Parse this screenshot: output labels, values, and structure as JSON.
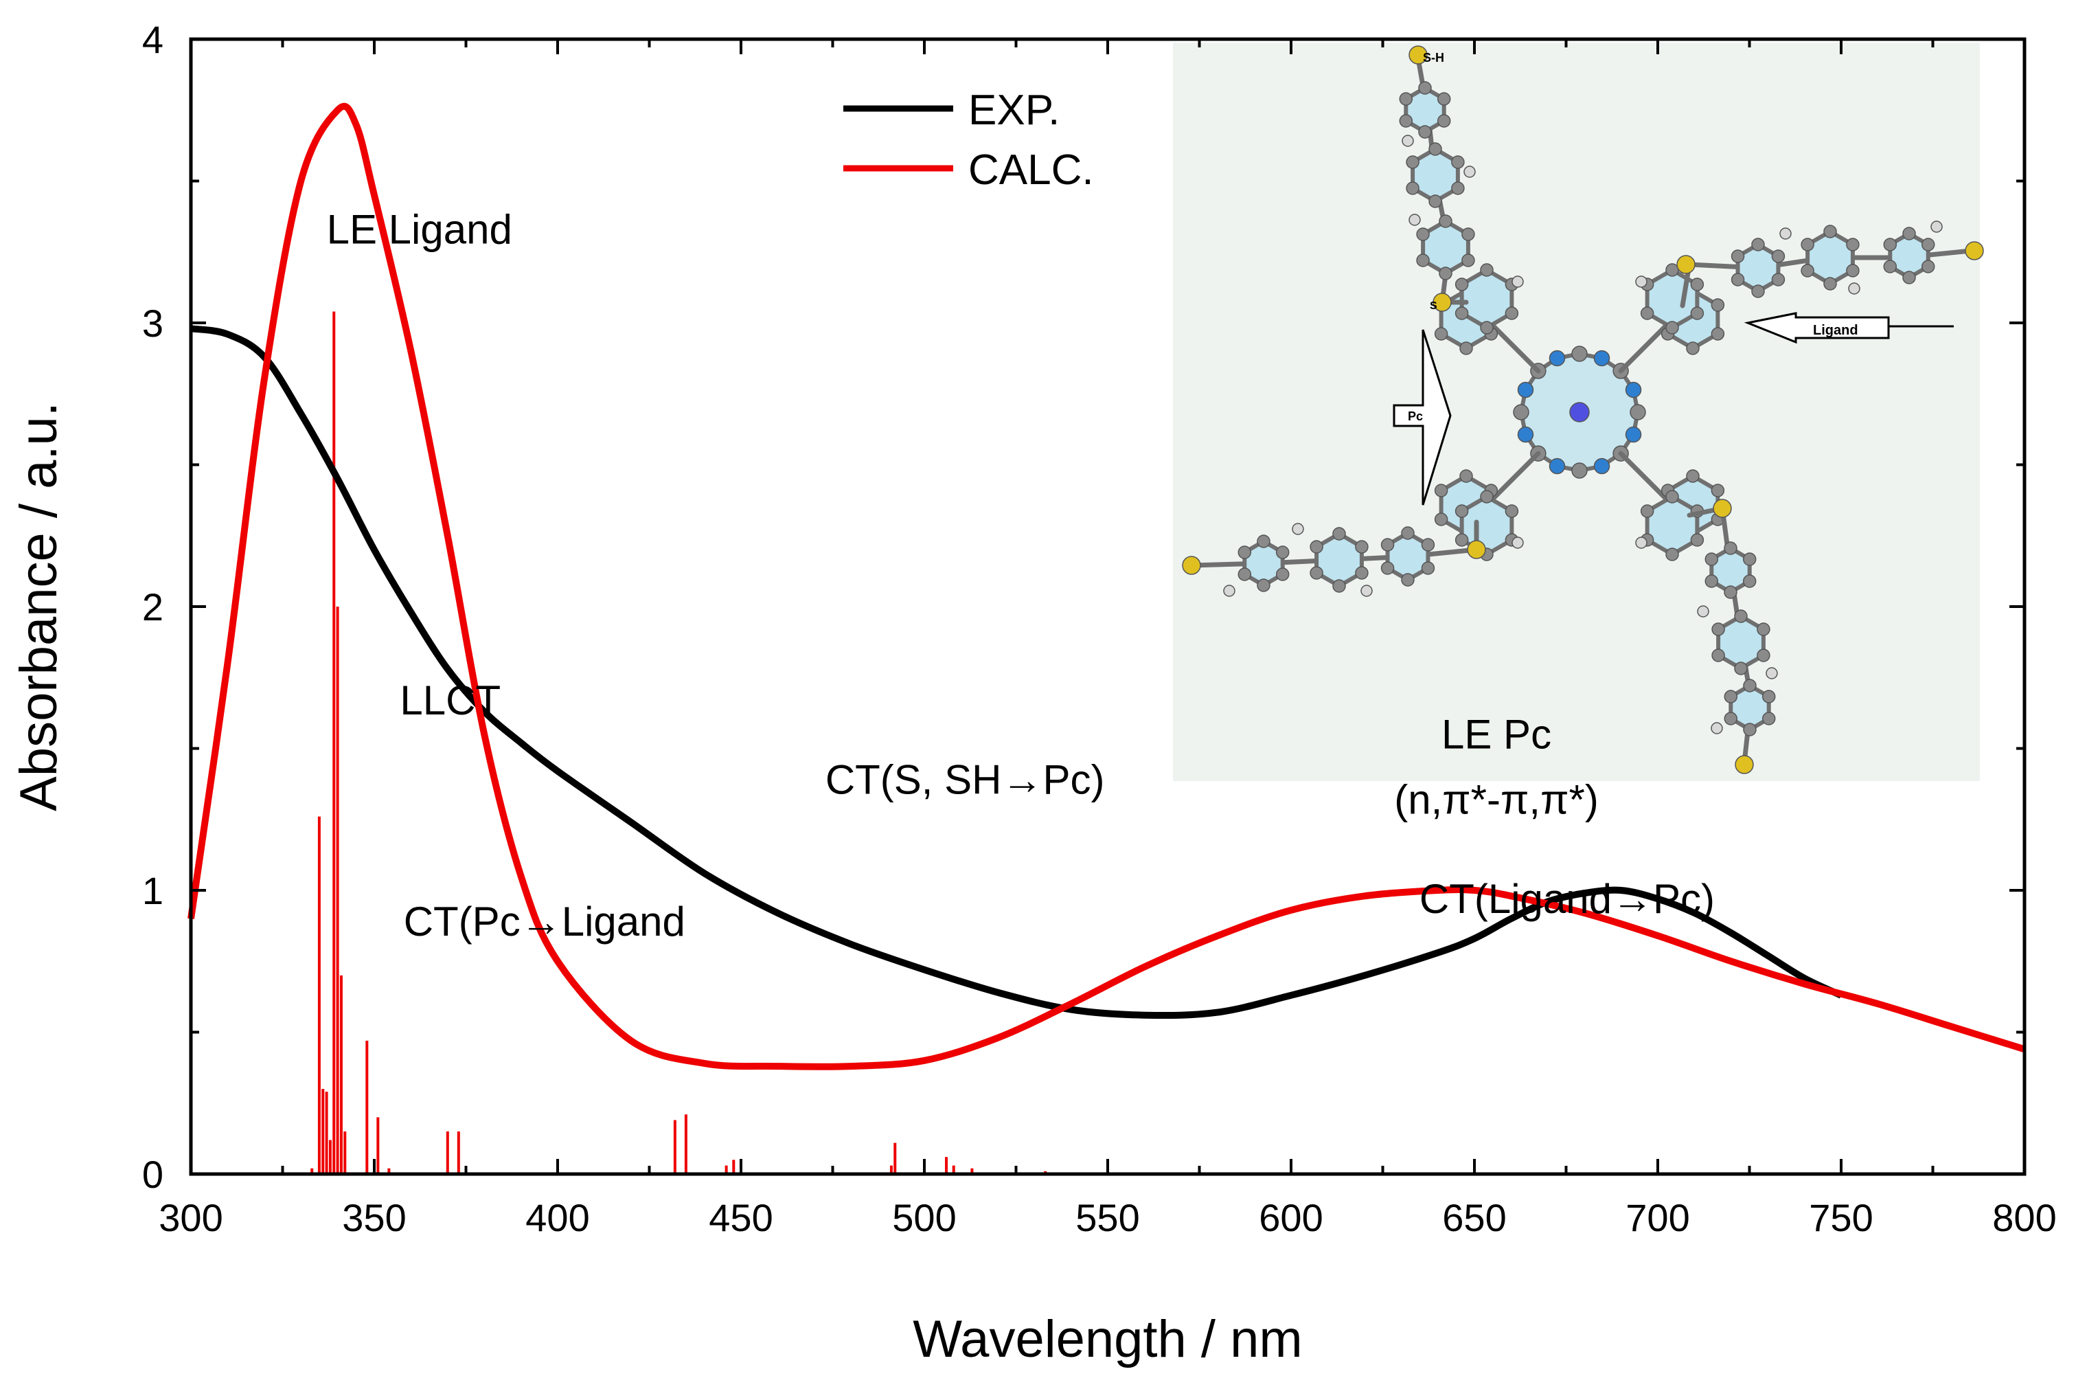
{
  "chart_data": {
    "type": "line",
    "xlabel": "Wavelength / nm",
    "ylabel": "Absorbance / a.u.",
    "xlim": [
      300,
      800
    ],
    "ylim": [
      0,
      4
    ],
    "xticks": [
      "300",
      "350",
      "400",
      "450",
      "500",
      "550",
      "600",
      "650",
      "700",
      "750",
      "800"
    ],
    "yticks": [
      "0",
      "1",
      "2",
      "3",
      "4"
    ],
    "legend_position": "top-center",
    "series": [
      {
        "name": "EXP.",
        "color": "#000000",
        "x": [
          300,
          310,
          320,
          330,
          340,
          350,
          360,
          370,
          380,
          390,
          400,
          420,
          440,
          460,
          480,
          500,
          520,
          540,
          560,
          580,
          600,
          620,
          640,
          650,
          660,
          670,
          680,
          690,
          700,
          710,
          720,
          730,
          740,
          750
        ],
        "y": [
          2.98,
          2.96,
          2.88,
          2.68,
          2.45,
          2.2,
          1.98,
          1.78,
          1.63,
          1.52,
          1.42,
          1.24,
          1.06,
          0.92,
          0.81,
          0.72,
          0.64,
          0.58,
          0.56,
          0.57,
          0.63,
          0.7,
          0.78,
          0.83,
          0.9,
          0.96,
          0.99,
          1.0,
          0.97,
          0.92,
          0.85,
          0.77,
          0.69,
          0.63
        ]
      },
      {
        "name": "CALC.",
        "color": "#ee0000",
        "x": [
          300,
          310,
          320,
          330,
          340,
          345,
          350,
          360,
          370,
          380,
          390,
          400,
          420,
          440,
          460,
          480,
          500,
          520,
          540,
          560,
          580,
          600,
          620,
          640,
          650,
          660,
          680,
          700,
          720,
          740,
          760,
          780,
          800
        ],
        "y": [
          0.9,
          1.8,
          2.8,
          3.5,
          3.75,
          3.7,
          3.45,
          2.9,
          2.25,
          1.55,
          1.05,
          0.75,
          0.47,
          0.39,
          0.38,
          0.38,
          0.4,
          0.48,
          0.6,
          0.73,
          0.84,
          0.93,
          0.98,
          1.0,
          1.0,
          0.98,
          0.92,
          0.84,
          0.75,
          0.67,
          0.6,
          0.52,
          0.44
        ]
      }
    ],
    "stick_spectrum": {
      "name": "CALC. oscillator strengths",
      "color": "#ee0000",
      "x": [
        333,
        335,
        336,
        337,
        338,
        339,
        340,
        341,
        342,
        348,
        351,
        354,
        370,
        373,
        432,
        435,
        446,
        448,
        491,
        492,
        506,
        508,
        513,
        533
      ],
      "y": [
        0.02,
        1.26,
        0.3,
        0.29,
        0.12,
        3.04,
        2.0,
        0.7,
        0.15,
        0.47,
        0.2,
        0.02,
        0.15,
        0.15,
        0.19,
        0.21,
        0.03,
        0.05,
        0.03,
        0.11,
        0.06,
        0.03,
        0.02,
        0.01
      ]
    },
    "annotations": [
      {
        "text": "LE Ligand",
        "x": 337,
        "y": 3.28
      },
      {
        "text": "LLCT",
        "x": 357,
        "y": 1.62
      },
      {
        "text": "CT(Pc→Ligand",
        "x": 358,
        "y": 0.84
      },
      {
        "text": "CT(S, SH→Pc)",
        "x": 473,
        "y": 1.34
      },
      {
        "text": "CT(Ligand→Pc)",
        "x": 635,
        "y": 0.92
      },
      {
        "text": "LE Pc",
        "x": 656,
        "y": 1.5
      },
      {
        "text": "(n,π*-π,π*)",
        "x": 656,
        "y": 1.27
      }
    ]
  },
  "inset": {
    "ligand_label": "Ligand",
    "pc_label": "Pc",
    "sh_label": "S-H",
    "s_label": "S"
  }
}
